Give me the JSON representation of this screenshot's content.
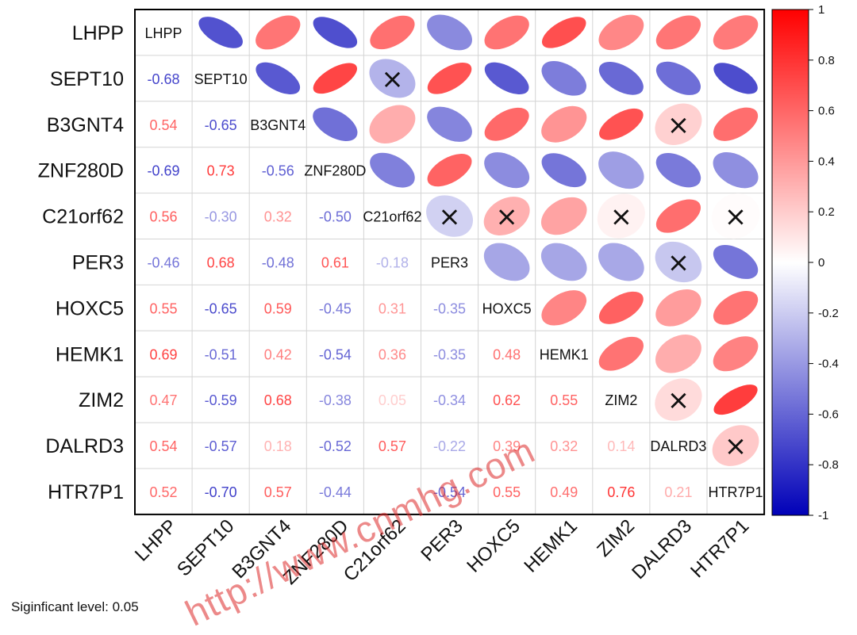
{
  "chart_data": {
    "type": "heatmap",
    "subtype": "correlation-matrix",
    "variables": [
      "LHPP",
      "SEPT10",
      "B3GNT4",
      "ZNF280D",
      "C21orf62",
      "PER3",
      "HOXC5",
      "HEMK1",
      "ZIM2",
      "DALRD3",
      "HTR7P1"
    ],
    "lower_values": [
      [
        -0.68
      ],
      [
        0.54,
        -0.65
      ],
      [
        -0.69,
        0.73,
        -0.56
      ],
      [
        0.56,
        -0.3,
        0.32,
        -0.5
      ],
      [
        -0.46,
        0.68,
        -0.48,
        0.61,
        -0.18
      ],
      [
        0.55,
        -0.65,
        0.59,
        -0.45,
        0.31,
        -0.35
      ],
      [
        0.69,
        -0.51,
        0.42,
        -0.54,
        0.36,
        -0.35,
        0.48
      ],
      [
        0.47,
        -0.59,
        0.68,
        -0.38,
        0.05,
        -0.34,
        0.62,
        0.55
      ],
      [
        0.54,
        -0.57,
        0.18,
        -0.52,
        0.57,
        -0.22,
        0.39,
        0.32,
        0.14
      ],
      [
        0.52,
        -0.7,
        0.57,
        -0.44,
        0.01,
        -0.54,
        0.55,
        0.49,
        0.76,
        0.21
      ]
    ],
    "value_labels": [
      [
        "-0.68"
      ],
      [
        "0.54",
        "-0.65"
      ],
      [
        "-0.69",
        "0.73",
        "-0.56"
      ],
      [
        "0.56",
        "-0.30",
        "0.32",
        "-0.50"
      ],
      [
        "-0.46",
        "0.68",
        "-0.48",
        "0.61",
        "-0.18"
      ],
      [
        "0.55",
        "-0.65",
        "0.59",
        "-0.45",
        "0.31",
        "-0.35"
      ],
      [
        "0.69",
        "-0.51",
        "0.42",
        "-0.54",
        "0.36",
        "-0.35",
        "0.48"
      ],
      [
        "0.47",
        "-0.59",
        "0.68",
        "-0.38",
        "0.05",
        "-0.34",
        "0.62",
        "0.55"
      ],
      [
        "0.54",
        "-0.57",
        "0.18",
        "-0.52",
        "0.57",
        "-0.22",
        "0.39",
        "0.32",
        "0.14"
      ],
      [
        "0.52",
        "-0.70",
        "0.57",
        "-0.44",
        "",
        "-0.54",
        "0.55",
        "0.49",
        "0.76",
        "0.21"
      ]
    ],
    "non_significant_cells": [
      [
        1,
        4
      ],
      [
        2,
        9
      ],
      [
        4,
        5
      ],
      [
        4,
        6
      ],
      [
        4,
        8
      ],
      [
        4,
        10
      ],
      [
        5,
        9
      ],
      [
        8,
        9
      ],
      [
        9,
        10
      ]
    ],
    "colorbar": {
      "range": [
        -1,
        1
      ],
      "ticks": [
        1,
        0.8,
        0.6,
        0.4,
        0.2,
        0,
        -0.2,
        -0.4,
        -0.6,
        -0.8,
        -1
      ],
      "tick_labels": [
        "1",
        "0.8",
        "0.6",
        "0.4",
        "0.2",
        "0",
        "-0.2",
        "-0.4",
        "-0.6",
        "-0.8",
        "-1"
      ],
      "color_negative": "#0000b8",
      "color_zero": "#ffffff",
      "color_positive": "#ff0000"
    },
    "upper_glyph": "ellipse",
    "insignificant_marker": "×"
  },
  "footnote": "Siginficant level: 0.05",
  "watermark": "http://www.cnmhg.com",
  "colors": {
    "neg_text": "#3a3aa8",
    "pos_text": "#e03030",
    "grid": "#d4d4d4",
    "frame": "#000000"
  }
}
